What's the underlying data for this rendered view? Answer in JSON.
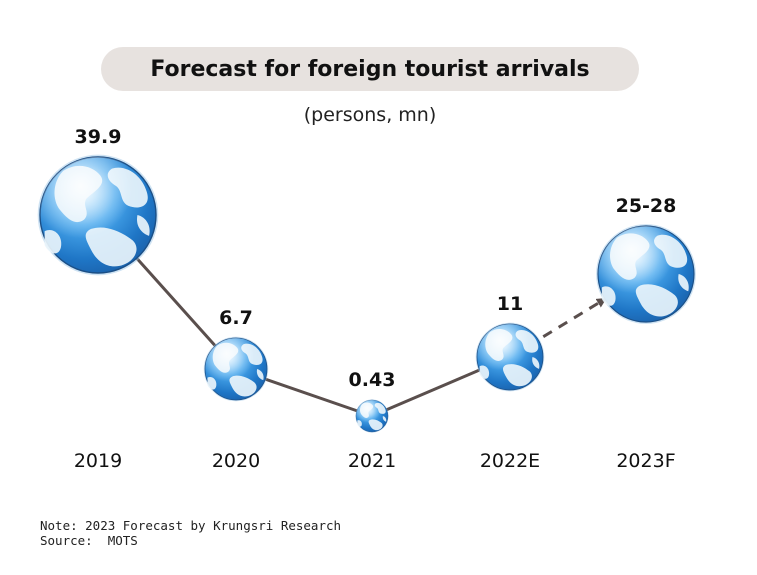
{
  "header": {
    "title": "Forecast for foreign tourist arrivals",
    "subtitle": "(persons, mn)"
  },
  "chart_data": {
    "type": "line",
    "title": "Forecast for foreign tourist arrivals",
    "ylabel": "(persons, mn)",
    "categories": [
      "2019",
      "2020",
      "2021",
      "2022E",
      "2023F"
    ],
    "values": [
      39.9,
      6.7,
      0.43,
      11,
      26.5
    ],
    "value_labels": [
      "39.9",
      "6.7",
      "0.43",
      "11",
      "25-28"
    ],
    "range_2023F": [
      25,
      28
    ],
    "last_segment_style": "dashed-arrow",
    "marker": "globe-icon",
    "grid": false
  },
  "footer": {
    "note": "Note: 2023 Forecast by Krungsri Research",
    "source": "Source:  MOTS"
  },
  "colors": {
    "line": "#5a4f4d",
    "globe_ocean": "#2a8fd8",
    "globe_land": "#e9f4fb",
    "title_bg": "#e7e2df"
  }
}
